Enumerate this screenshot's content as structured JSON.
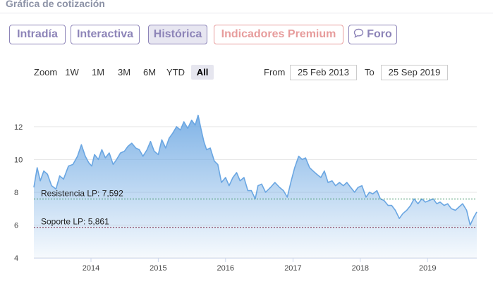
{
  "header": {
    "title": "Gráfica de cotización"
  },
  "tabs": [
    {
      "label": "Intradía",
      "active": false
    },
    {
      "label": "Interactiva",
      "active": false
    },
    {
      "label": "Histórica",
      "active": true
    },
    {
      "label": "Indicadores Premium",
      "active": false,
      "accent": "#e79c9c"
    },
    {
      "label": "Foro",
      "active": false,
      "icon": "speech-bubble-icon"
    }
  ],
  "range_selector": {
    "zoom_label": "Zoom",
    "buttons": [
      "1W",
      "1M",
      "3M",
      "6M",
      "YTD",
      "All"
    ],
    "selected": "All",
    "from_label": "From",
    "from_value": "25 Feb 2013",
    "to_label": "To",
    "to_value": "25 Sep 2019"
  },
  "colors": {
    "accent": "#8d84b8",
    "line": "#6aa6e2",
    "resistance": "#2e8b57",
    "support": "#7a1f3d"
  },
  "chart_data": {
    "type": "area",
    "title": "",
    "xlabel": "",
    "ylabel": "",
    "ylim": [
      4,
      13.5
    ],
    "xlim": [
      "2013-02-25",
      "2019-09-25"
    ],
    "y_ticks": [
      "4",
      "6",
      "8",
      "10",
      "12"
    ],
    "x_ticks": [
      "2014",
      "2015",
      "2016",
      "2017",
      "2018",
      "2019"
    ],
    "grid": true,
    "series": [
      {
        "name": "",
        "x": [
          "2013-02-25",
          "2013-03-15",
          "2013-04-01",
          "2013-04-20",
          "2013-05-10",
          "2013-06-01",
          "2013-06-25",
          "2013-07-15",
          "2013-08-05",
          "2013-09-01",
          "2013-09-25",
          "2013-10-20",
          "2013-11-10",
          "2013-12-01",
          "2013-12-20",
          "2014-01-05",
          "2014-01-20",
          "2014-02-10",
          "2014-03-01",
          "2014-03-20",
          "2014-04-10",
          "2014-05-01",
          "2014-05-20",
          "2014-06-10",
          "2014-07-01",
          "2014-07-20",
          "2014-08-10",
          "2014-09-01",
          "2014-09-20",
          "2014-10-10",
          "2014-11-01",
          "2014-11-20",
          "2014-12-10",
          "2015-01-01",
          "2015-01-20",
          "2015-02-10",
          "2015-03-01",
          "2015-03-20",
          "2015-04-10",
          "2015-05-01",
          "2015-05-20",
          "2015-06-10",
          "2015-07-01",
          "2015-07-20",
          "2015-08-05",
          "2015-08-20",
          "2015-09-05",
          "2015-09-20",
          "2015-10-10",
          "2015-11-01",
          "2015-11-20",
          "2015-12-10",
          "2016-01-01",
          "2016-01-20",
          "2016-02-10",
          "2016-03-01",
          "2016-03-20",
          "2016-04-10",
          "2016-05-01",
          "2016-05-20",
          "2016-06-10",
          "2016-06-25",
          "2016-07-15",
          "2016-08-05",
          "2016-09-01",
          "2016-09-25",
          "2016-10-20",
          "2016-11-10",
          "2016-12-01",
          "2016-12-20",
          "2017-01-10",
          "2017-02-01",
          "2017-02-20",
          "2017-03-10",
          "2017-04-01",
          "2017-04-20",
          "2017-05-10",
          "2017-06-01",
          "2017-06-20",
          "2017-07-10",
          "2017-08-01",
          "2017-08-20",
          "2017-09-10",
          "2017-10-01",
          "2017-10-20",
          "2017-11-10",
          "2017-12-01",
          "2017-12-20",
          "2018-01-10",
          "2018-02-01",
          "2018-02-20",
          "2018-03-10",
          "2018-04-01",
          "2018-04-20",
          "2018-05-10",
          "2018-06-01",
          "2018-06-20",
          "2018-07-10",
          "2018-08-01",
          "2018-08-20",
          "2018-09-10",
          "2018-10-01",
          "2018-10-20",
          "2018-11-10",
          "2018-12-01",
          "2018-12-20",
          "2019-01-10",
          "2019-02-01",
          "2019-02-20",
          "2019-03-10",
          "2019-04-01",
          "2019-04-20",
          "2019-05-10",
          "2019-06-01",
          "2019-06-20",
          "2019-07-10",
          "2019-08-01",
          "2019-08-20",
          "2019-09-10",
          "2019-09-25"
        ],
        "y": [
          8.3,
          9.5,
          8.7,
          9.3,
          9.1,
          8.4,
          8.2,
          9.0,
          8.8,
          9.6,
          9.7,
          10.2,
          10.9,
          10.2,
          9.8,
          9.6,
          10.3,
          10.0,
          10.6,
          10.1,
          10.4,
          9.7,
          10.0,
          10.4,
          10.5,
          10.8,
          11.0,
          10.7,
          10.6,
          10.2,
          10.6,
          11.1,
          10.5,
          10.3,
          11.2,
          10.7,
          11.3,
          11.6,
          12.0,
          11.8,
          12.3,
          11.9,
          12.4,
          12.1,
          12.7,
          11.9,
          11.1,
          10.6,
          10.7,
          9.9,
          9.7,
          8.6,
          8.9,
          8.4,
          8.9,
          9.2,
          8.7,
          8.9,
          8.1,
          8.1,
          7.6,
          8.4,
          8.5,
          8.0,
          8.3,
          8.6,
          8.3,
          8.1,
          7.7,
          8.6,
          9.5,
          10.2,
          10.0,
          10.1,
          9.5,
          9.3,
          9.1,
          8.9,
          9.3,
          8.6,
          8.7,
          8.4,
          8.6,
          8.4,
          8.6,
          8.3,
          8.0,
          8.3,
          8.4,
          7.7,
          8.0,
          7.9,
          8.1,
          7.6,
          7.5,
          7.2,
          7.2,
          6.9,
          6.4,
          6.7,
          6.9,
          7.2,
          7.6,
          7.3,
          7.6,
          7.4,
          7.5,
          7.6,
          7.3,
          7.4,
          7.2,
          7.3,
          7.0,
          6.9,
          7.1,
          7.3,
          6.9,
          6.0,
          6.5,
          6.8
        ]
      }
    ],
    "annotations": [
      {
        "label": "Resistencia LP: 7,592",
        "y": 7.592
      },
      {
        "label": "Soporte LP: 5,861",
        "y": 5.861
      }
    ]
  }
}
